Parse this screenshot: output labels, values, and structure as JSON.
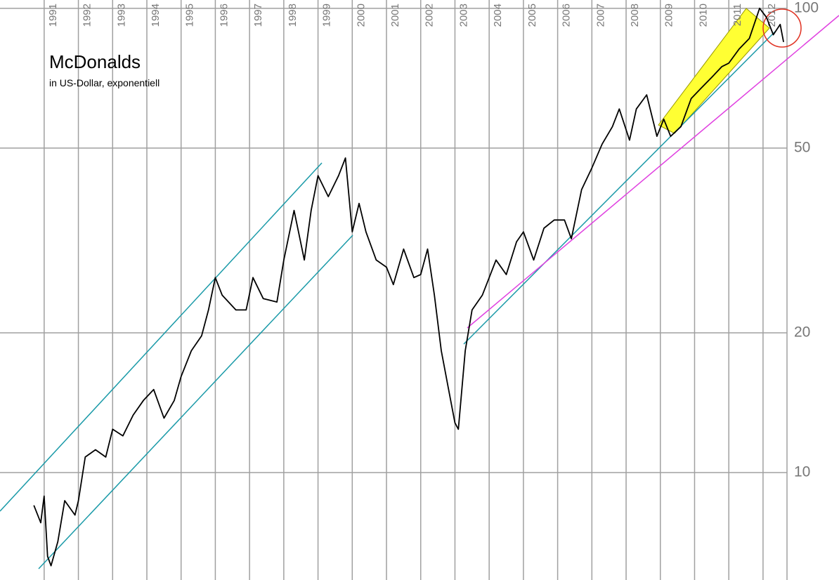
{
  "chart_data": {
    "type": "line",
    "title": "McDonalds",
    "subtitle": "in US-Dollar, exponentiell",
    "yscale": "log",
    "grid": true,
    "xlim": [
      1989.71,
      2012.7
    ],
    "ylim": [
      5.87,
      104.2
    ],
    "xticks": [
      1991,
      1992,
      1993,
      1994,
      1995,
      1996,
      1997,
      1998,
      1999,
      2000,
      2001,
      2002,
      2003,
      2004,
      2005,
      2006,
      2007,
      2008,
      2009,
      2010,
      2011,
      2012
    ],
    "yticks": [
      10,
      20,
      50,
      100
    ],
    "x": [
      1990.7,
      1990.9,
      1991.0,
      1991.1,
      1991.2,
      1991.4,
      1991.6,
      1991.9,
      1992.0,
      1992.2,
      1992.5,
      1992.8,
      1993.0,
      1993.3,
      1993.6,
      1993.9,
      1994.2,
      1994.5,
      1994.8,
      1995.0,
      1995.3,
      1995.6,
      1995.8,
      1996.0,
      1996.2,
      1996.6,
      1996.9,
      1997.1,
      1997.4,
      1997.8,
      1998.0,
      1998.3,
      1998.6,
      1998.8,
      1999.0,
      1999.3,
      1999.6,
      1999.8,
      2000.0,
      2000.2,
      2000.4,
      2000.7,
      2001.0,
      2001.2,
      2001.5,
      2001.8,
      2002.0,
      2002.2,
      2002.4,
      2002.6,
      2002.8,
      2003.0,
      2003.1,
      2003.3,
      2003.5,
      2003.8,
      2004.0,
      2004.2,
      2004.5,
      2004.8,
      2005.0,
      2005.3,
      2005.6,
      2005.9,
      2006.2,
      2006.4,
      2006.7,
      2007.0,
      2007.3,
      2007.6,
      2007.8,
      2008.1,
      2008.3,
      2008.6,
      2008.9,
      2009.1,
      2009.3,
      2009.6,
      2009.9,
      2010.2,
      2010.5,
      2010.8,
      2011.0,
      2011.3,
      2011.6,
      2011.9,
      2012.1,
      2012.3,
      2012.5,
      2012.6
    ],
    "series": [
      {
        "color": "#000000",
        "values": [
          8.5,
          7.8,
          8.9,
          6.6,
          6.3,
          7.1,
          8.7,
          8.1,
          8.7,
          10.8,
          11.2,
          10.8,
          12.4,
          12.0,
          13.3,
          14.3,
          15.1,
          13.1,
          14.3,
          16.1,
          18.3,
          19.7,
          22.4,
          26.3,
          24.1,
          22.4,
          22.4,
          26.3,
          23.7,
          23.3,
          28.7,
          36.7,
          28.7,
          36.7,
          43.6,
          39.3,
          43.6,
          47.6,
          33.0,
          38.0,
          33.0,
          28.7,
          27.7,
          25.4,
          30.3,
          26.3,
          26.7,
          30.3,
          24.1,
          18.3,
          15.3,
          12.8,
          12.4,
          18.3,
          22.4,
          24.1,
          26.3,
          28.7,
          26.7,
          31.4,
          33.0,
          28.7,
          33.6,
          35.0,
          35.0,
          31.9,
          40.7,
          45.3,
          51.0,
          55.6,
          60.7,
          52.0,
          60.7,
          65.1,
          53.0,
          57.7,
          53.0,
          55.6,
          63.9,
          67.4,
          71.0,
          74.9,
          76.2,
          81.7,
          86.1,
          100,
          95.6,
          87.7,
          92.3,
          84.6
        ]
      }
    ]
  }
}
